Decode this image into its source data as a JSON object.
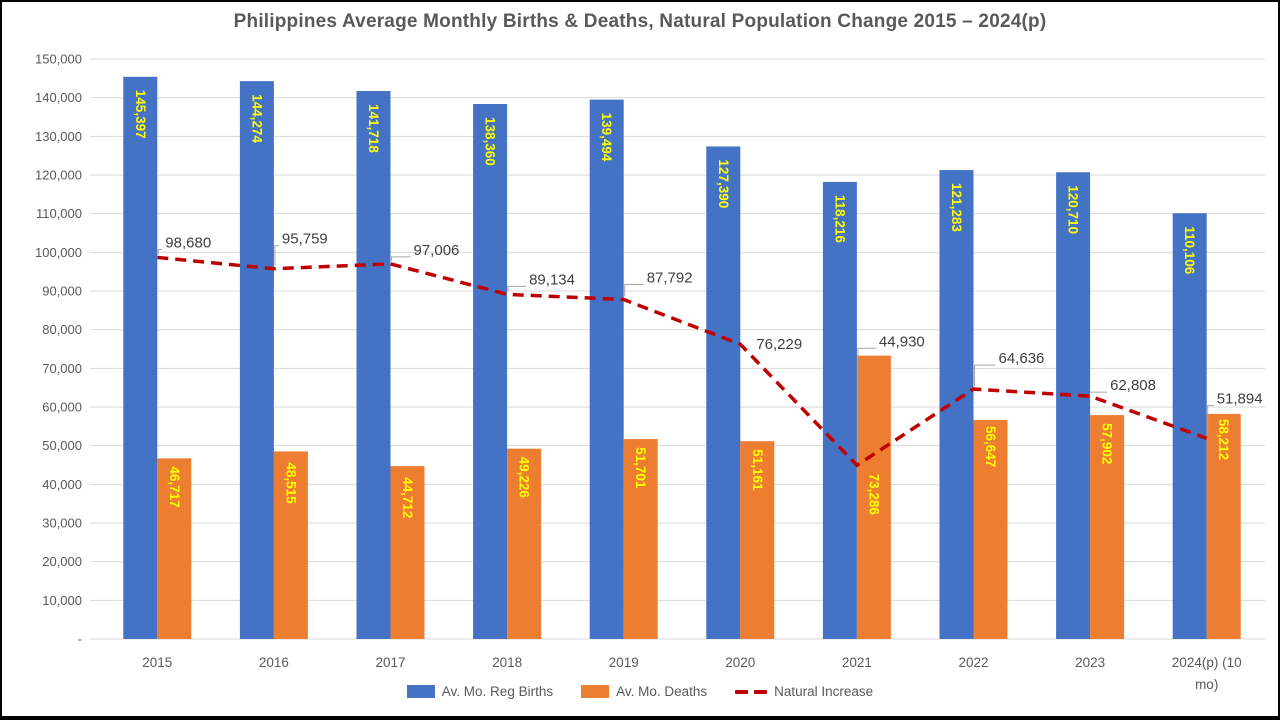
{
  "title": "Philippines Average Monthly Births & Deaths, Natural Population Change 2015 – 2024(p)",
  "chart_data": {
    "type": "bar",
    "categories": [
      "2015",
      "2016",
      "2017",
      "2018",
      "2019",
      "2020",
      "2021",
      "2022",
      "2023",
      "2024(p) (10 mo)"
    ],
    "category_display_labels": [
      "2015",
      "2016",
      "2017",
      "2018",
      "2019",
      "2020",
      "2021",
      "2022",
      "2023",
      "2024(p) (10\nmo)"
    ],
    "series": [
      {
        "name": "Av. Mo. Reg Births",
        "type": "bar",
        "color": "#4472C4",
        "data_label_color": "#FFFF00",
        "values": [
          145397,
          144274,
          141718,
          138360,
          139494,
          127390,
          118216,
          121283,
          120710,
          110106
        ]
      },
      {
        "name": "Av. Mo. Deaths",
        "type": "bar",
        "color": "#ED7D31",
        "data_label_color": "#FFFF00",
        "values": [
          46717,
          48515,
          44712,
          49226,
          51701,
          51161,
          73286,
          56647,
          57902,
          58212
        ]
      },
      {
        "name": "Natural Increase",
        "type": "line",
        "color": "#C00000",
        "line_style": "dashed",
        "data_label_color": "#404040",
        "values": [
          98680,
          95759,
          97006,
          89134,
          87792,
          76229,
          44930,
          64636,
          62808,
          51894
        ]
      }
    ],
    "ylim": [
      0,
      150000
    ],
    "ytick_step": 10000,
    "zero_tick_label": "-",
    "grid": true,
    "legend_position": "bottom",
    "axis_text_color": "#595959",
    "gridline_color": "#D9D9D9",
    "leader_line_color": "#A6A6A6",
    "layout_hints": {
      "line_label_offsets": [
        [
          8,
          -15,
          1
        ],
        [
          8,
          -30,
          1
        ],
        [
          23,
          -14,
          1
        ],
        [
          22,
          -15,
          1
        ],
        [
          23,
          -22,
          1
        ],
        [
          16,
          0,
          0
        ],
        [
          22,
          -124,
          1
        ],
        [
          25,
          -31,
          1
        ],
        [
          20,
          -11,
          1
        ],
        [
          10,
          -40,
          1
        ]
      ],
      "births_label_inset": 13,
      "deaths_label_insets": [
        8,
        11,
        11,
        8,
        8,
        8,
        118,
        6,
        8,
        5
      ]
    }
  }
}
